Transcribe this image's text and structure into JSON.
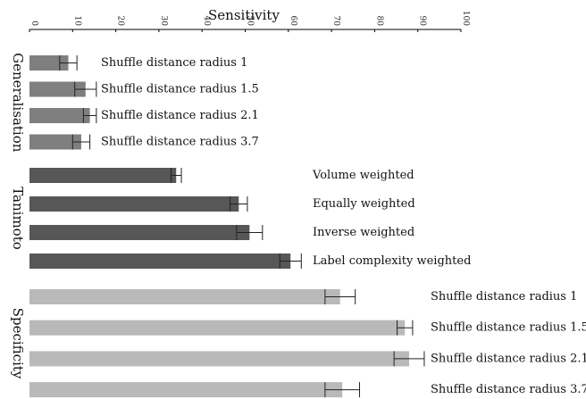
{
  "chart_data": {
    "type": "bar",
    "orientation": "horizontal",
    "title": "Sensitivity",
    "xlim": [
      0,
      100
    ],
    "x_ticks": [
      0,
      10,
      20,
      30,
      40,
      50,
      60,
      70,
      80,
      90,
      100
    ],
    "grid": false,
    "groups": [
      {
        "name": "Generalisation",
        "color": "#7f7f7f",
        "bars": [
          {
            "label": "Shuffle distance radius 1",
            "value": 9,
            "error": 2
          },
          {
            "label": "Shuffle distance radius 1.5",
            "value": 13,
            "error": 2.5
          },
          {
            "label": "Shuffle distance radius 2.1",
            "value": 14,
            "error": 1.5
          },
          {
            "label": "Shuffle distance radius 3.7",
            "value": 12,
            "error": 2
          }
        ]
      },
      {
        "name": "Tanimoto",
        "color": "#575757",
        "bars": [
          {
            "label": "Volume weighted",
            "value": 34,
            "error": 1.2
          },
          {
            "label": "Equally weighted",
            "value": 48.5,
            "error": 2
          },
          {
            "label": "Inverse weighted",
            "value": 51,
            "error": 3
          },
          {
            "label": "Label complexity weighted",
            "value": 60.5,
            "error": 2.5
          }
        ]
      },
      {
        "name": "Specificity",
        "color": "#b9b9b9",
        "bars": [
          {
            "label": "Shuffle distance radius 1",
            "value": 72,
            "error": 3.5
          },
          {
            "label": "Shuffle distance radius 1.5",
            "value": 87,
            "error": 1.8
          },
          {
            "label": "Shuffle distance radius 2.1",
            "value": 88,
            "error": 3.5
          },
          {
            "label": "Shuffle distance radius 3.7",
            "value": 72.5,
            "error": 4
          }
        ]
      }
    ]
  }
}
